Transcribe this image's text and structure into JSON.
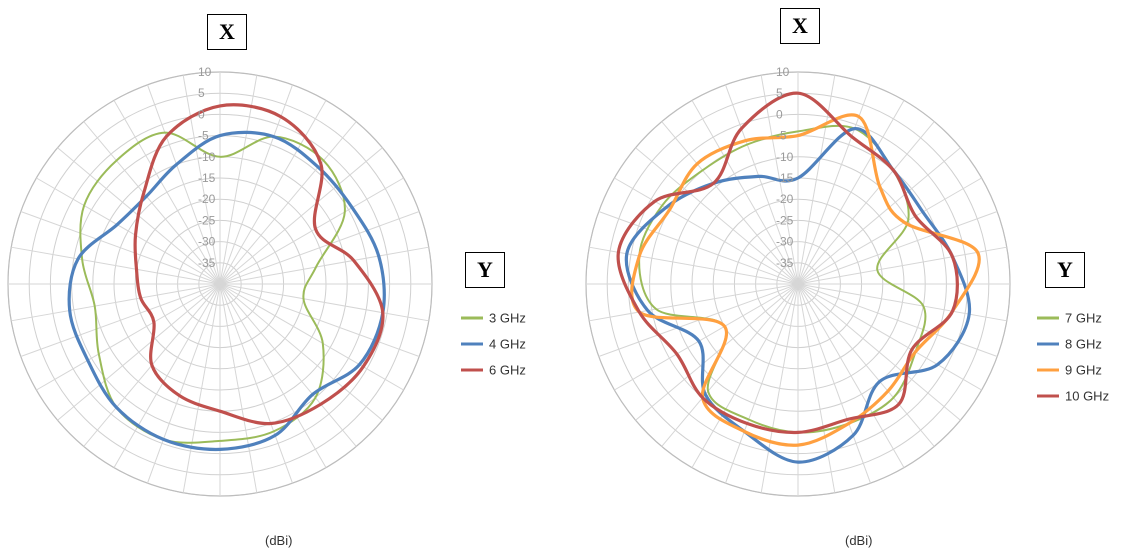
{
  "chart_data": [
    {
      "type": "polar-line",
      "radial_axis": {
        "min": -40,
        "max": 10,
        "step": 5,
        "tick_labels": [
          "10",
          "5",
          "0",
          "-5",
          "-10",
          "-15",
          "-20",
          "-25",
          "-30",
          "-35"
        ]
      },
      "angular_divisions": 36,
      "top_label": "X",
      "right_label": "Y",
      "unit_label": "(dBi)",
      "legend_position": "right",
      "angles_deg": [
        0,
        20,
        40,
        60,
        80,
        100,
        120,
        140,
        160,
        180,
        200,
        220,
        240,
        260,
        280,
        300,
        320,
        340
      ],
      "series": [
        {
          "name": "3 GHz",
          "color": "#9BBB59",
          "values": [
            -10,
            -3,
            -2,
            -6,
            -17,
            -20,
            -12,
            -5,
            -3,
            -3,
            -1,
            -2,
            -7,
            -10,
            -7,
            -3,
            -2,
            -2
          ]
        },
        {
          "name": "4 GHz",
          "color": "#4F81BD",
          "values": [
            -5,
            -3,
            -4,
            -4,
            -2,
            -1,
            -2,
            -6,
            -2,
            -1,
            -1,
            -2,
            -4,
            -4,
            -6,
            -12,
            -13,
            -10
          ]
        },
        {
          "name": "6 GHz",
          "color": "#C0504D",
          "values": [
            2,
            2,
            -3,
            -14,
            -8,
            -1,
            -1,
            -3,
            -5,
            -10,
            -12,
            -15,
            -22,
            -21,
            -20,
            -17,
            -12,
            -3
          ]
        }
      ]
    },
    {
      "type": "polar-line",
      "radial_axis": {
        "min": -40,
        "max": 10,
        "step": 5,
        "tick_labels": [
          "10",
          "5",
          "0",
          "-5",
          "-10",
          "-15",
          "-20",
          "-25",
          "-30",
          "-35"
        ]
      },
      "angular_divisions": 36,
      "top_label": "X",
      "right_label": "Y",
      "unit_label": "(dBi)",
      "legend_position": "right",
      "angles_deg": [
        0,
        20,
        40,
        60,
        80,
        100,
        120,
        140,
        160,
        180,
        200,
        220,
        240,
        260,
        280,
        300,
        320,
        340
      ],
      "series": [
        {
          "name": "7 GHz",
          "color": "#9BBB59",
          "values": [
            -4,
            -1,
            -5,
            -10,
            -21,
            -10,
            -8,
            -5,
            -5,
            -5,
            -6,
            -7,
            -20,
            -6,
            -2,
            -3,
            -5,
            -5
          ]
        },
        {
          "name": "8 GHz",
          "color": "#4F81BD",
          "values": [
            -15,
            -1,
            -5,
            -6,
            -3,
            1,
            -2,
            -10,
            -2,
            2,
            -3,
            -6,
            -13,
            -4,
            1,
            -4,
            -9,
            -13
          ]
        },
        {
          "name": "9 GHz",
          "color": "#FFA040",
          "values": [
            -5,
            2,
            -10,
            -11,
            3,
            -3,
            -8,
            -7,
            -5,
            -2,
            -3,
            -5,
            -20,
            -2,
            -2,
            -5,
            -3,
            -4
          ]
        },
        {
          "name": "10 GHz",
          "color": "#C0504D",
          "values": [
            5,
            -3,
            -5,
            -8,
            -3,
            -3,
            -9,
            -3,
            -6,
            -5,
            -5,
            -5,
            -7,
            -2,
            3,
            -1,
            -9,
            -1
          ]
        }
      ]
    }
  ]
}
